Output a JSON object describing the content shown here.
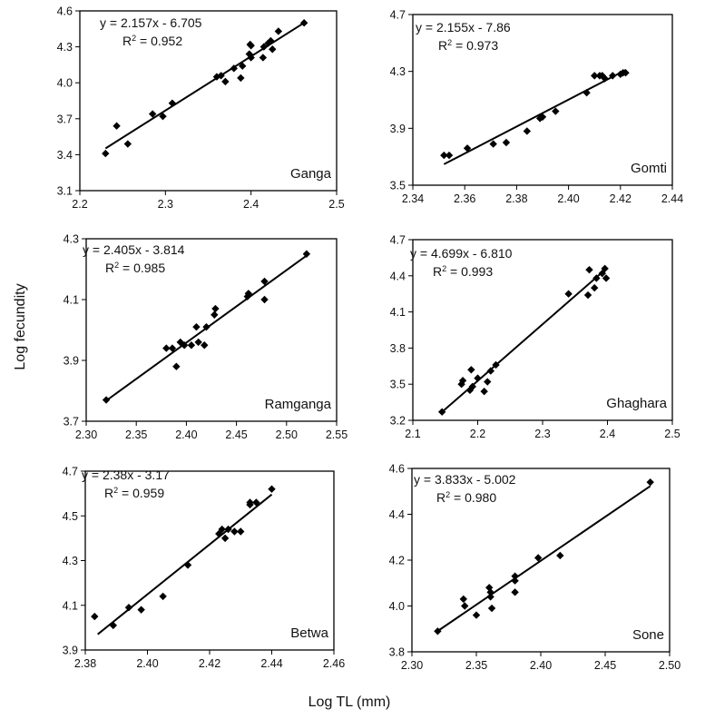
{
  "figure": {
    "xlabel": "Log TL (mm)",
    "ylabel": "Log fecundity"
  },
  "chart_data": [
    {
      "type": "scatter",
      "river": "Ganga",
      "equation": "y = 2.157x - 6.705",
      "r2_prefix": "R",
      "r2_sup": "2",
      "r2_value": " = 0.952",
      "xlim": [
        2.2,
        2.5
      ],
      "ylim": [
        3.1,
        4.6
      ],
      "xticks": [
        "2.2",
        "2.3",
        "2.4",
        "2.5"
      ],
      "yticks": [
        "3.1",
        "3.4",
        "3.7",
        "4.0",
        "4.3",
        "4.6"
      ],
      "fit": {
        "slope": 2.157,
        "intercept": -6.705,
        "x_range": [
          2.23,
          2.46
        ]
      },
      "points": [
        {
          "x": 2.23,
          "y": 3.41
        },
        {
          "x": 2.243,
          "y": 3.64
        },
        {
          "x": 2.256,
          "y": 3.49
        },
        {
          "x": 2.285,
          "y": 3.74
        },
        {
          "x": 2.297,
          "y": 3.72
        },
        {
          "x": 2.308,
          "y": 3.83
        },
        {
          "x": 2.36,
          "y": 4.05
        },
        {
          "x": 2.365,
          "y": 4.06
        },
        {
          "x": 2.37,
          "y": 4.01
        },
        {
          "x": 2.38,
          "y": 4.12
        },
        {
          "x": 2.388,
          "y": 4.04
        },
        {
          "x": 2.39,
          "y": 4.14
        },
        {
          "x": 2.398,
          "y": 4.24
        },
        {
          "x": 2.399,
          "y": 4.32
        },
        {
          "x": 2.4,
          "y": 4.31
        },
        {
          "x": 2.4,
          "y": 4.21
        },
        {
          "x": 2.414,
          "y": 4.21
        },
        {
          "x": 2.415,
          "y": 4.3
        },
        {
          "x": 2.42,
          "y": 4.33
        },
        {
          "x": 2.423,
          "y": 4.35
        },
        {
          "x": 2.425,
          "y": 4.28
        },
        {
          "x": 2.432,
          "y": 4.43
        },
        {
          "x": 2.462,
          "y": 4.5
        }
      ]
    },
    {
      "type": "scatter",
      "river": "Gomti",
      "equation": "y = 2.155x - 7.86",
      "r2_prefix": "R",
      "r2_sup": "2",
      "r2_value": " = 0.973",
      "xlim": [
        2.34,
        2.44
      ],
      "ylim": [
        3.5,
        4.7
      ],
      "xticks": [
        "2.34",
        "2.36",
        "2.38",
        "2.40",
        "2.42",
        "2.44"
      ],
      "yticks": [
        "3.5",
        "3.9",
        "4.3",
        "4.7"
      ],
      "fit": {
        "slope": 2.155,
        "intercept": -7.86,
        "x_range": [
          2.352,
          2.422
        ]
      },
      "points": [
        {
          "x": 2.352,
          "y": 3.71
        },
        {
          "x": 2.354,
          "y": 3.71
        },
        {
          "x": 2.361,
          "y": 3.76
        },
        {
          "x": 2.371,
          "y": 3.79
        },
        {
          "x": 2.376,
          "y": 3.8
        },
        {
          "x": 2.384,
          "y": 3.88
        },
        {
          "x": 2.389,
          "y": 3.97
        },
        {
          "x": 2.39,
          "y": 3.98
        },
        {
          "x": 2.395,
          "y": 4.02
        },
        {
          "x": 2.407,
          "y": 4.15
        },
        {
          "x": 2.41,
          "y": 4.27
        },
        {
          "x": 2.412,
          "y": 4.27
        },
        {
          "x": 2.413,
          "y": 4.27
        },
        {
          "x": 2.414,
          "y": 4.25
        },
        {
          "x": 2.417,
          "y": 4.27
        },
        {
          "x": 2.42,
          "y": 4.28
        },
        {
          "x": 2.421,
          "y": 4.29
        },
        {
          "x": 2.422,
          "y": 4.29
        }
      ]
    },
    {
      "type": "scatter",
      "river": "Ramganga",
      "equation": "y = 2.405x - 3.814",
      "r2_prefix": "R",
      "r2_sup": "2",
      "r2_value": " = 0.985",
      "xlim": [
        2.3,
        2.55
      ],
      "ylim": [
        3.7,
        4.3
      ],
      "xticks": [
        "2.30",
        "2.35",
        "2.40",
        "2.45",
        "2.50",
        "2.55"
      ],
      "yticks": [
        "3.7",
        "3.9",
        "4.1",
        "4.3"
      ],
      "fit": {
        "slope": 2.405,
        "intercept": -3.814,
        "x_range": [
          2.32,
          2.52
        ]
      },
      "points": [
        {
          "x": 2.32,
          "y": 3.77
        },
        {
          "x": 2.38,
          "y": 3.94
        },
        {
          "x": 2.386,
          "y": 3.94
        },
        {
          "x": 2.39,
          "y": 3.88
        },
        {
          "x": 2.394,
          "y": 3.96
        },
        {
          "x": 2.398,
          "y": 3.95
        },
        {
          "x": 2.405,
          "y": 3.95
        },
        {
          "x": 2.41,
          "y": 4.01
        },
        {
          "x": 2.412,
          "y": 3.96
        },
        {
          "x": 2.418,
          "y": 3.95
        },
        {
          "x": 2.42,
          "y": 4.01
        },
        {
          "x": 2.428,
          "y": 4.05
        },
        {
          "x": 2.429,
          "y": 4.07
        },
        {
          "x": 2.461,
          "y": 4.11
        },
        {
          "x": 2.462,
          "y": 4.12
        },
        {
          "x": 2.478,
          "y": 4.1
        },
        {
          "x": 2.478,
          "y": 4.16
        },
        {
          "x": 2.52,
          "y": 4.25
        }
      ]
    },
    {
      "type": "scatter",
      "river": "Ghaghara",
      "equation": "y = 4.699x - 6.810",
      "r2_prefix": "R",
      "r2_sup": "2",
      "r2_value": " = 0.993",
      "xlim": [
        2.1,
        2.5
      ],
      "ylim": [
        3.2,
        4.7
      ],
      "xticks": [
        "2.1",
        "2.2",
        "2.3",
        "2.4",
        "2.5"
      ],
      "yticks": [
        "3.2",
        "3.5",
        "3.8",
        "4.1",
        "4.4",
        "4.7"
      ],
      "fit": {
        "slope": 4.699,
        "intercept": -6.81,
        "x_range": [
          2.145,
          2.398
        ]
      },
      "points": [
        {
          "x": 2.145,
          "y": 3.27
        },
        {
          "x": 2.175,
          "y": 3.5
        },
        {
          "x": 2.177,
          "y": 3.53
        },
        {
          "x": 2.188,
          "y": 3.45
        },
        {
          "x": 2.19,
          "y": 3.62
        },
        {
          "x": 2.192,
          "y": 3.48
        },
        {
          "x": 2.2,
          "y": 3.55
        },
        {
          "x": 2.21,
          "y": 3.44
        },
        {
          "x": 2.215,
          "y": 3.52
        },
        {
          "x": 2.22,
          "y": 3.61
        },
        {
          "x": 2.228,
          "y": 3.66
        },
        {
          "x": 2.34,
          "y": 4.25
        },
        {
          "x": 2.37,
          "y": 4.24
        },
        {
          "x": 2.372,
          "y": 4.45
        },
        {
          "x": 2.38,
          "y": 4.3
        },
        {
          "x": 2.383,
          "y": 4.38
        },
        {
          "x": 2.392,
          "y": 4.42
        },
        {
          "x": 2.396,
          "y": 4.46
        },
        {
          "x": 2.398,
          "y": 4.38
        }
      ]
    },
    {
      "type": "scatter",
      "river": "Betwa",
      "equation": "y = 2.38x - 3.17",
      "r2_prefix": "R",
      "r2_sup": "2",
      "r2_value": " = 0.959",
      "xlim": [
        2.38,
        2.46
      ],
      "ylim": [
        3.9,
        4.7
      ],
      "xticks": [
        "2.38",
        "2.40",
        "2.42",
        "2.44",
        "2.46"
      ],
      "yticks": [
        "3.9",
        "4.1",
        "4.3",
        "4.5",
        "4.7"
      ],
      "fit": {
        "slope": 2.38,
        "intercept": -3.17,
        "x_range": [
          2.384,
          2.44
        ]
      },
      "points": [
        {
          "x": 2.383,
          "y": 4.05
        },
        {
          "x": 2.389,
          "y": 4.01
        },
        {
          "x": 2.394,
          "y": 4.09
        },
        {
          "x": 2.398,
          "y": 4.08
        },
        {
          "x": 2.405,
          "y": 4.14
        },
        {
          "x": 2.413,
          "y": 4.28
        },
        {
          "x": 2.423,
          "y": 4.42
        },
        {
          "x": 2.424,
          "y": 4.44
        },
        {
          "x": 2.425,
          "y": 4.4
        },
        {
          "x": 2.426,
          "y": 4.44
        },
        {
          "x": 2.428,
          "y": 4.43
        },
        {
          "x": 2.43,
          "y": 4.43
        },
        {
          "x": 2.433,
          "y": 4.55
        },
        {
          "x": 2.433,
          "y": 4.56
        },
        {
          "x": 2.435,
          "y": 4.56
        },
        {
          "x": 2.44,
          "y": 4.62
        }
      ]
    },
    {
      "type": "scatter",
      "river": "Sone",
      "equation": "y = 3.833x - 5.002",
      "r2_prefix": "R",
      "r2_sup": "2",
      "r2_value": " = 0.980",
      "xlim": [
        2.3,
        2.5
      ],
      "ylim": [
        3.8,
        4.6
      ],
      "xticks": [
        "2.30",
        "2.35",
        "2.40",
        "2.45",
        "2.50"
      ],
      "yticks": [
        "3.8",
        "4.0",
        "4.2",
        "4.4",
        "4.6"
      ],
      "fit": {
        "slope": 3.833,
        "intercept": -5.002,
        "x_range": [
          2.32,
          2.485
        ]
      },
      "points": [
        {
          "x": 2.32,
          "y": 3.89
        },
        {
          "x": 2.34,
          "y": 4.03
        },
        {
          "x": 2.341,
          "y": 4.0
        },
        {
          "x": 2.35,
          "y": 3.96
        },
        {
          "x": 2.36,
          "y": 4.08
        },
        {
          "x": 2.361,
          "y": 4.06
        },
        {
          "x": 2.361,
          "y": 4.04
        },
        {
          "x": 2.362,
          "y": 3.99
        },
        {
          "x": 2.38,
          "y": 4.13
        },
        {
          "x": 2.38,
          "y": 4.11
        },
        {
          "x": 2.38,
          "y": 4.06
        },
        {
          "x": 2.398,
          "y": 4.21
        },
        {
          "x": 2.415,
          "y": 4.22
        },
        {
          "x": 2.485,
          "y": 4.54
        }
      ]
    }
  ]
}
